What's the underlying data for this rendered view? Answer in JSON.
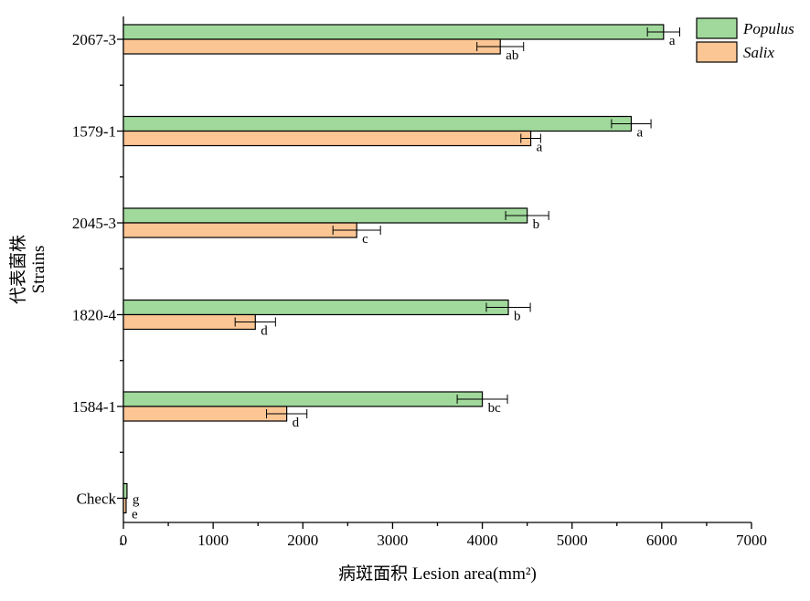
{
  "chart_data": {
    "type": "bar",
    "orientation": "horizontal",
    "categories": [
      "2067-3",
      "1579-1",
      "2045-3",
      "1820-4",
      "1584-1",
      "Check"
    ],
    "series": [
      {
        "name": "Populus",
        "color": "#a0d99b",
        "values": [
          6020,
          5660,
          4500,
          4290,
          4000,
          40
        ],
        "errors": [
          180,
          220,
          240,
          245,
          280,
          0
        ],
        "letters": [
          "a",
          "a",
          "b",
          "b",
          "bc",
          "g"
        ]
      },
      {
        "name": "Salix",
        "color": "#fcc594",
        "values": [
          4200,
          4540,
          2600,
          1470,
          1820,
          30
        ],
        "errors": [
          260,
          110,
          265,
          225,
          225,
          0
        ],
        "letters": [
          "ab",
          "a",
          "c",
          "d",
          "d",
          "e"
        ]
      }
    ],
    "xlim": [
      0,
      7000
    ],
    "xticks": [
      0,
      1000,
      2000,
      3000,
      4000,
      5000,
      6000,
      7000
    ],
    "x_label": "病斑面积  Lesion area(mm²)",
    "y_label": [
      "代表菌株",
      "Strains"
    ],
    "legend": "top-right",
    "legend_italic": true
  }
}
